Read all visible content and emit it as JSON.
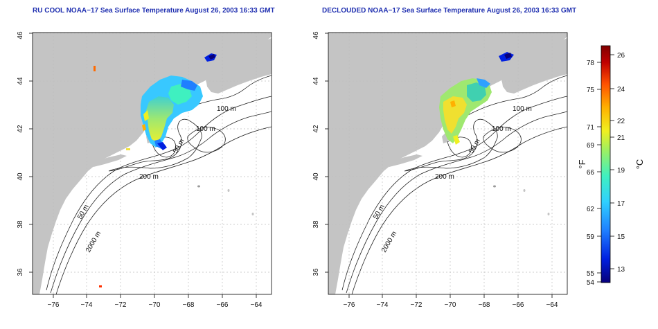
{
  "titles": {
    "left": "RU COOL NOAA−17 Sea Surface Temperature August 26, 2003 16:33 GMT",
    "right": "DECLOUDED NOAA−17 Sea Surface Temperature August 26, 2003 16:33 GMT"
  },
  "axes": {
    "x_ticks": [
      "−76",
      "−74",
      "−72",
      "−70",
      "−68",
      "−66",
      "−64"
    ],
    "y_ticks": [
      "36",
      "38",
      "40",
      "42",
      "44",
      "46"
    ]
  },
  "contour_labels": {
    "left": [
      "100 m",
      "100 m",
      "50 m",
      "200 m",
      "50 m",
      "2000 m"
    ],
    "right": [
      "100 m",
      "100 m",
      "50 m",
      "200 m",
      "50 m",
      "2000 m"
    ]
  },
  "colorbar": {
    "unit_f": "°F",
    "unit_c": "°C",
    "f_ticks": [
      "78",
      "75",
      "71",
      "69",
      "66",
      "62",
      "59",
      "55",
      "54"
    ],
    "c_ticks": [
      "26",
      "24",
      "22",
      "21",
      "19",
      "17",
      "15",
      "13"
    ],
    "colors": [
      "#08007a",
      "#0020e0",
      "#1f7fff",
      "#2fd0ff",
      "#3ff0c0",
      "#9ff060",
      "#f0f020",
      "#ffb000",
      "#ff5000",
      "#c00000",
      "#800000"
    ]
  }
}
